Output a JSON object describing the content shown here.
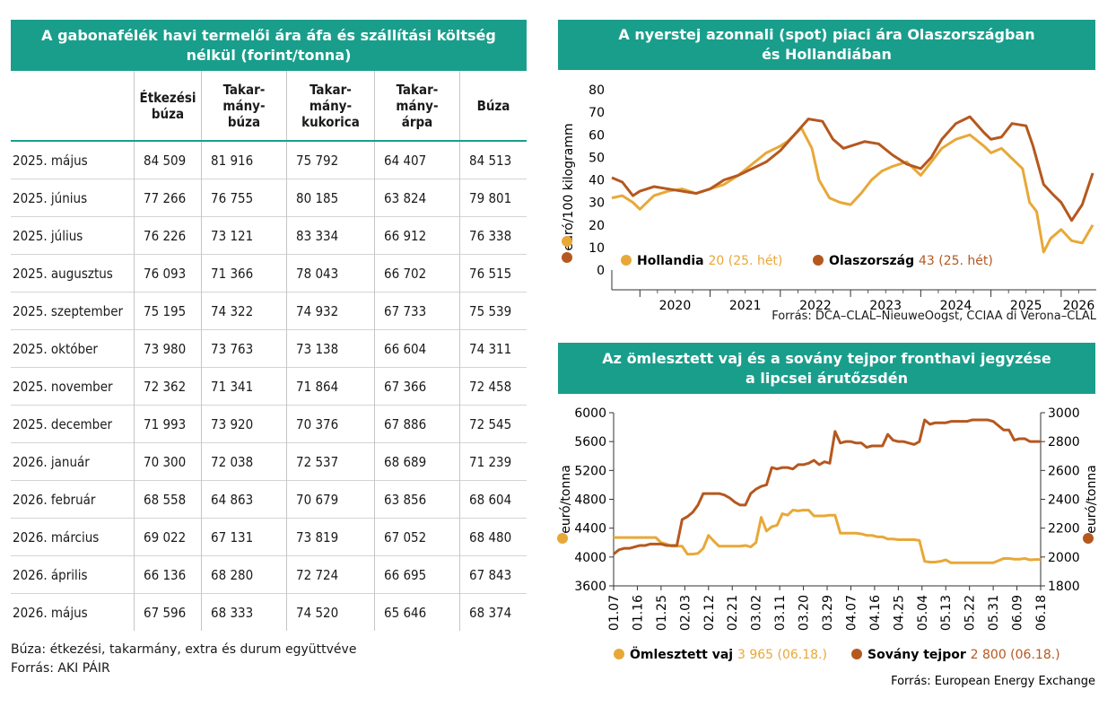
{
  "table": {
    "title": "A gabonafélék havi termelői ára áfa és szállítási költség nélkül (forint/tonna)",
    "columns": [
      "Étkezési búza",
      "Takarmánybúza",
      "Takarmánykukorica",
      "Takarmányárpa",
      "Búza"
    ],
    "column_lines": [
      [
        "Étkezési",
        "búza"
      ],
      [
        "Takar-",
        "mány-",
        "búza"
      ],
      [
        "Takar-",
        "mány-",
        "kukorica"
      ],
      [
        "Takar-",
        "mány-",
        "árpa"
      ],
      [
        "Búza"
      ]
    ],
    "rows": [
      {
        "month": "2025. május",
        "v": [
          "84 509",
          "81 916",
          "75 792",
          "64 407",
          "84 513"
        ]
      },
      {
        "month": "2025. június",
        "v": [
          "77 266",
          "76 755",
          "80 185",
          "63 824",
          "79 801"
        ]
      },
      {
        "month": "2025. július",
        "v": [
          "76 226",
          "73 121",
          "83 334",
          "66 912",
          "76 338"
        ]
      },
      {
        "month": "2025. augusztus",
        "v": [
          "76 093",
          "71 366",
          "78 043",
          "66 702",
          "76 515"
        ]
      },
      {
        "month": "2025. szeptember",
        "v": [
          "75 195",
          "74 322",
          "74 932",
          "67 733",
          "75 539"
        ]
      },
      {
        "month": "2025. október",
        "v": [
          "73 980",
          "73 763",
          "73 138",
          "66 604",
          "74 311"
        ]
      },
      {
        "month": "2025. november",
        "v": [
          "72 362",
          "71 341",
          "71 864",
          "67 366",
          "72 458"
        ]
      },
      {
        "month": "2025. december",
        "v": [
          "71 993",
          "73 920",
          "70 376",
          "67 886",
          "72 545"
        ]
      },
      {
        "month": "2026. január",
        "v": [
          "70 300",
          "72 038",
          "72 537",
          "68 689",
          "71 239"
        ]
      },
      {
        "month": "2026. február",
        "v": [
          "68 558",
          "64 863",
          "70 679",
          "63 856",
          "68 604"
        ]
      },
      {
        "month": "2026. március",
        "v": [
          "69 022",
          "67 131",
          "73 819",
          "67 052",
          "68 480"
        ]
      },
      {
        "month": "2026. április",
        "v": [
          "66 136",
          "68 280",
          "72 724",
          "66 695",
          "67 843"
        ]
      },
      {
        "month": "2026. május",
        "v": [
          "67 596",
          "68 333",
          "74 520",
          "65 646",
          "68 374"
        ]
      }
    ],
    "note": "Búza: étkezési, takarmány, extra és durum együttvéve",
    "source": "Forrás: AKI PÁIR"
  },
  "colors": {
    "header_bg": "#1a9e8c",
    "light": "#e8a838",
    "dark": "#b5581f"
  },
  "chart_data": [
    {
      "type": "line",
      "title": "A nyerstej azonnali (spot) piaci ára Olaszországban és Hollandiában",
      "title_lines": [
        "A nyerstej azonnali (spot) piaci ára Olaszországban",
        "és Hollandiában"
      ],
      "ylabel": "euró/100 kilogramm",
      "ylim": [
        0,
        80
      ],
      "yticks": [
        "0",
        "10",
        "20",
        "30",
        "40",
        "50",
        "60",
        "70",
        "80"
      ],
      "xlim": [
        2019.6,
        2026.5
      ],
      "xticks": [
        "2020",
        "2021",
        "2022",
        "2023",
        "2024",
        "2025",
        "2026"
      ],
      "series": [
        {
          "name": "Hollandia",
          "label_value": "20 (25. hét)",
          "color": "#e8a838",
          "x": [
            2019.6,
            2019.75,
            2019.9,
            2020.0,
            2020.2,
            2020.4,
            2020.6,
            2020.8,
            2021.0,
            2021.2,
            2021.4,
            2021.6,
            2021.8,
            2022.0,
            2022.1,
            2022.2,
            2022.3,
            2022.45,
            2022.55,
            2022.7,
            2022.85,
            2023.0,
            2023.15,
            2023.3,
            2023.45,
            2023.6,
            2023.8,
            2024.0,
            2024.15,
            2024.3,
            2024.5,
            2024.7,
            2024.9,
            2025.0,
            2025.15,
            2025.25,
            2025.35,
            2025.45,
            2025.55,
            2025.65,
            2025.75,
            2025.85,
            2026.0,
            2026.15,
            2026.3,
            2026.45
          ],
          "y": [
            32,
            33,
            30,
            27,
            33,
            35,
            36,
            34,
            36,
            38,
            42,
            47,
            52,
            55,
            57,
            60,
            63,
            54,
            40,
            32,
            30,
            29,
            34,
            40,
            44,
            46,
            48,
            42,
            48,
            54,
            58,
            60,
            55,
            52,
            54,
            51,
            48,
            45,
            30,
            26,
            8,
            14,
            18,
            13,
            12,
            20
          ]
        },
        {
          "name": "Olaszország",
          "label_value": "43 (25. hét)",
          "color": "#b5581f",
          "x": [
            2019.6,
            2019.75,
            2019.9,
            2020.0,
            2020.2,
            2020.4,
            2020.6,
            2020.8,
            2021.0,
            2021.2,
            2021.4,
            2021.6,
            2021.8,
            2022.0,
            2022.2,
            2022.4,
            2022.6,
            2022.75,
            2022.9,
            2023.0,
            2023.2,
            2023.4,
            2023.6,
            2023.8,
            2024.0,
            2024.15,
            2024.3,
            2024.5,
            2024.7,
            2024.9,
            2025.0,
            2025.15,
            2025.3,
            2025.5,
            2025.6,
            2025.75,
            2025.9,
            2026.0,
            2026.15,
            2026.3,
            2026.45
          ],
          "y": [
            41,
            39,
            33,
            35,
            37,
            36,
            35,
            34,
            36,
            40,
            42,
            45,
            48,
            53,
            60,
            67,
            66,
            58,
            54,
            55,
            57,
            56,
            51,
            47,
            45,
            50,
            58,
            65,
            68,
            61,
            58,
            59,
            65,
            64,
            55,
            38,
            33,
            30,
            22,
            29,
            43
          ]
        }
      ]
    },
    {
      "type": "line",
      "title": "Az ömlesztett vaj és a sovány tejpor fronthavi jegyzése a lipcsei árutőzsdén",
      "title_lines": [
        "Az ömlesztett vaj és a sovány tejpor fronthavi jegyzése",
        "a lipcsei árutőzsdén"
      ],
      "ylabel": "euró/tonna",
      "y2label": "euró/tonna",
      "ylim": [
        3600,
        6000
      ],
      "yticks": [
        "3600",
        "4000",
        "4400",
        "4800",
        "5200",
        "5600",
        "6000"
      ],
      "y2lim": [
        1800,
        3000
      ],
      "y2ticks": [
        "1800",
        "2000",
        "2200",
        "2400",
        "2600",
        "2800",
        "3000"
      ],
      "xticks": [
        "01.07",
        "01.16",
        "01.25",
        "02.03",
        "02.12",
        "02.21",
        "03.02",
        "03.11",
        "03.20",
        "03.29",
        "04.07",
        "04.16",
        "04.25",
        "05.04",
        "05.13",
        "05.22",
        "05.31",
        "06.09",
        "06.18"
      ],
      "series": [
        {
          "name": "Ömlesztett vaj",
          "label_value": "3 965 (06.18.)",
          "color": "#e8a838",
          "axis": "left",
          "x": [
            0,
            2,
            4,
            6,
            8,
            10,
            12,
            14,
            16,
            18,
            20,
            22,
            24,
            26,
            28,
            30,
            32,
            34,
            36,
            38,
            40,
            42,
            44,
            46,
            48,
            50,
            52,
            54,
            56,
            58,
            60,
            62,
            64,
            66,
            68,
            70,
            72,
            74,
            76,
            78,
            80,
            82,
            84,
            86,
            88,
            90,
            92,
            94,
            96,
            98,
            100,
            102,
            104,
            106,
            108,
            110,
            112,
            114,
            116,
            118,
            120,
            122,
            124,
            126,
            128,
            130,
            132,
            134,
            136,
            138,
            140,
            142,
            144,
            146,
            148,
            150,
            152,
            154,
            156,
            158,
            160,
            162
          ],
          "y": [
            4270,
            4270,
            4270,
            4270,
            4270,
            4270,
            4270,
            4270,
            4270,
            4200,
            4180,
            4150,
            4150,
            4150,
            4040,
            4040,
            4050,
            4120,
            4300,
            4220,
            4150,
            4150,
            4150,
            4150,
            4150,
            4160,
            4140,
            4200,
            4550,
            4360,
            4420,
            4440,
            4600,
            4580,
            4650,
            4640,
            4650,
            4650,
            4570,
            4570,
            4570,
            4580,
            4580,
            4330,
            4330,
            4330,
            4330,
            4320,
            4300,
            4300,
            4280,
            4280,
            4250,
            4250,
            4240,
            4240,
            4240,
            4240,
            4230,
            3940,
            3930,
            3930,
            3940,
            3960,
            3920,
            3920,
            3920,
            3920,
            3920,
            3920,
            3920,
            3920,
            3920,
            3950,
            3980,
            3980,
            3970,
            3970,
            3980,
            3960,
            3965,
            3965
          ]
        },
        {
          "name": "Sovány tejpor",
          "label_value": "2 800 (06.18.)",
          "color": "#b5581f",
          "axis": "right",
          "x": [
            0,
            2,
            4,
            6,
            8,
            10,
            12,
            14,
            16,
            18,
            20,
            22,
            24,
            26,
            28,
            30,
            32,
            34,
            36,
            38,
            40,
            42,
            44,
            46,
            48,
            50,
            52,
            54,
            56,
            58,
            60,
            62,
            64,
            66,
            68,
            70,
            72,
            74,
            76,
            78,
            80,
            82,
            84,
            86,
            88,
            90,
            92,
            94,
            96,
            98,
            100,
            102,
            104,
            106,
            108,
            110,
            112,
            114,
            116,
            118,
            120,
            122,
            124,
            126,
            128,
            130,
            132,
            134,
            136,
            138,
            140,
            142,
            144,
            146,
            148,
            150,
            152,
            154,
            156,
            158,
            160,
            162
          ],
          "y": [
            2020,
            2050,
            2060,
            2060,
            2070,
            2080,
            2080,
            2090,
            2090,
            2090,
            2080,
            2080,
            2080,
            2260,
            2280,
            2310,
            2360,
            2440,
            2440,
            2440,
            2440,
            2430,
            2410,
            2380,
            2360,
            2360,
            2440,
            2470,
            2490,
            2500,
            2620,
            2610,
            2620,
            2620,
            2610,
            2640,
            2640,
            2650,
            2670,
            2640,
            2660,
            2650,
            2870,
            2790,
            2800,
            2800,
            2790,
            2790,
            2760,
            2770,
            2770,
            2770,
            2850,
            2810,
            2800,
            2800,
            2790,
            2780,
            2800,
            2950,
            2920,
            2930,
            2930,
            2930,
            2940,
            2940,
            2940,
            2940,
            2950,
            2950,
            2950,
            2950,
            2940,
            2910,
            2880,
            2880,
            2810,
            2820,
            2820,
            2800,
            2800,
            2800
          ]
        }
      ]
    }
  ],
  "chart1_source": "Forrás: DCA–CLAL–NieuweOogst, CCIAA di Verona–CLAL",
  "chart2_source": "Forrás: European Energy Exchange"
}
